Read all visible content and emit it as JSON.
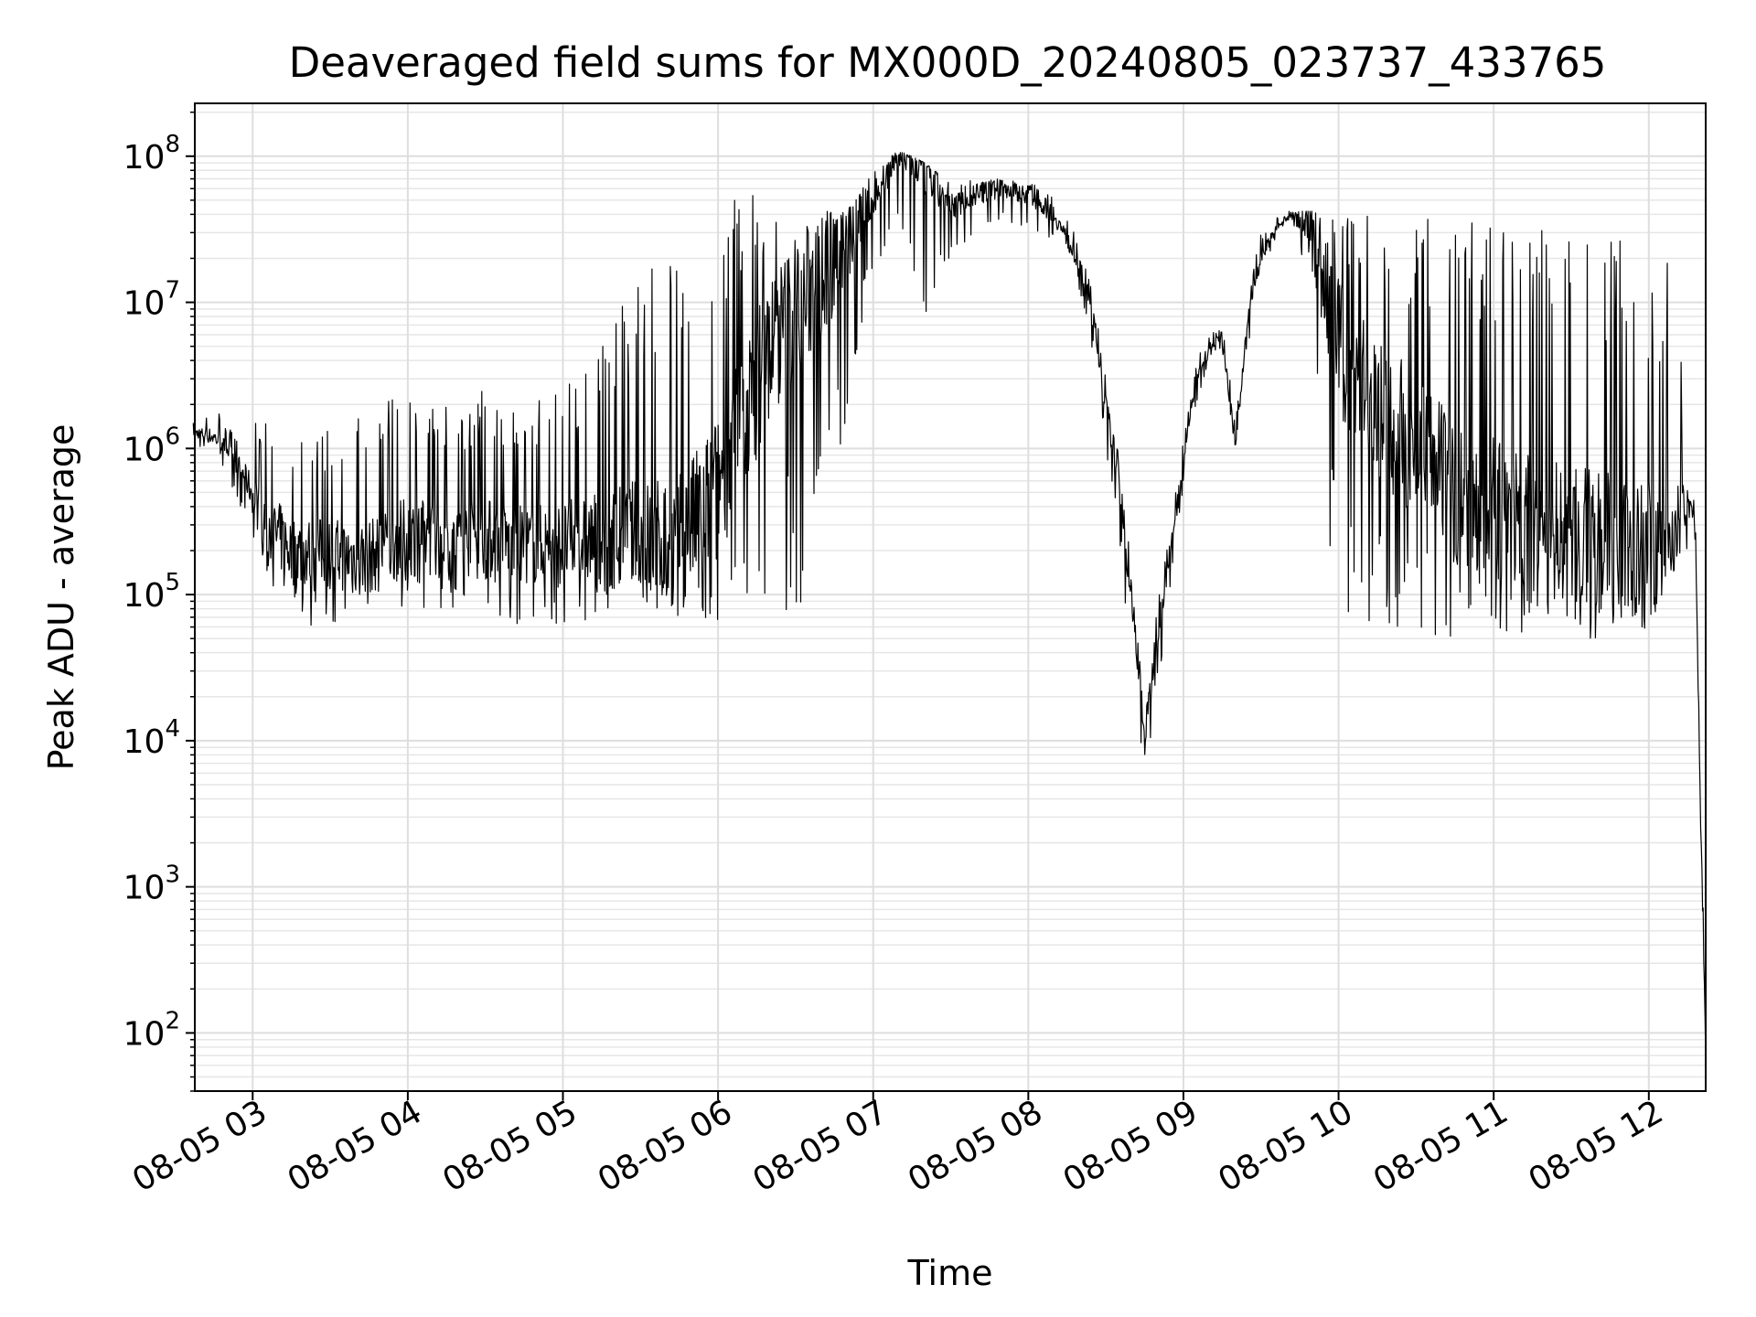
{
  "chart_data": {
    "type": "line",
    "title": "Deaveraged field sums for MX000D_20240805_023737_433765",
    "xlabel": "Time",
    "ylabel": "Peak ADU - average",
    "yscale": "log",
    "ylim": [
      40,
      230000000
    ],
    "xlim": [
      "08-05 02:37:37",
      "08-05 12:22:00"
    ],
    "grid": true,
    "x_ticks": [
      {
        "value": "08-05 03:00",
        "label": "08-05 03"
      },
      {
        "value": "08-05 04:00",
        "label": "08-05 04"
      },
      {
        "value": "08-05 05:00",
        "label": "08-05 05"
      },
      {
        "value": "08-05 06:00",
        "label": "08-05 06"
      },
      {
        "value": "08-05 07:00",
        "label": "08-05 07"
      },
      {
        "value": "08-05 08:00",
        "label": "08-05 08"
      },
      {
        "value": "08-05 09:00",
        "label": "08-05 09"
      },
      {
        "value": "08-05 10:00",
        "label": "08-05 10"
      },
      {
        "value": "08-05 11:00",
        "label": "08-05 11"
      },
      {
        "value": "08-05 12:00",
        "label": "08-05 12"
      }
    ],
    "y_ticks": [
      {
        "value": 100,
        "base": "10",
        "exp": "2"
      },
      {
        "value": 1000,
        "base": "10",
        "exp": "3"
      },
      {
        "value": 10000,
        "base": "10",
        "exp": "4"
      },
      {
        "value": 100000,
        "base": "10",
        "exp": "5"
      },
      {
        "value": 1000000,
        "base": "10",
        "exp": "6"
      },
      {
        "value": 10000000,
        "base": "10",
        "exp": "7"
      },
      {
        "value": 100000000,
        "base": "10",
        "exp": "8"
      }
    ],
    "series": [
      {
        "line_color": "#000000",
        "x": [
          "08-05 02:37",
          "08-05 02:45",
          "08-05 02:50",
          "08-05 02:57",
          "08-05 03:05",
          "08-05 03:10",
          "08-05 03:15",
          "08-05 03:30",
          "08-05 03:45",
          "08-05 04:00",
          "08-05 04:15",
          "08-05 04:30",
          "08-05 04:45",
          "08-05 05:00",
          "08-05 05:15",
          "08-05 05:30",
          "08-05 05:45",
          "08-05 05:55",
          "08-05 06:05",
          "08-05 06:12",
          "08-05 06:20",
          "08-05 06:30",
          "08-05 06:40",
          "08-05 06:50",
          "08-05 07:00",
          "08-05 07:10",
          "08-05 07:20",
          "08-05 07:30",
          "08-05 07:40",
          "08-05 07:50",
          "08-05 08:00",
          "08-05 08:10",
          "08-05 08:20",
          "08-05 08:25",
          "08-05 08:30",
          "08-05 08:35",
          "08-05 08:40",
          "08-05 08:43",
          "08-05 08:45",
          "08-05 08:50",
          "08-05 08:55",
          "08-05 09:00",
          "08-05 09:05",
          "08-05 09:10",
          "08-05 09:15",
          "08-05 09:18",
          "08-05 09:20",
          "08-05 09:25",
          "08-05 09:30",
          "08-05 09:35",
          "08-05 09:40",
          "08-05 09:45",
          "08-05 09:50",
          "08-05 10:00",
          "08-05 10:15",
          "08-05 10:30",
          "08-05 10:45",
          "08-05 11:00",
          "08-05 11:15",
          "08-05 11:30",
          "08-05 11:45",
          "08-05 12:00",
          "08-05 12:05",
          "08-05 12:10",
          "08-05 12:15",
          "08-05 12:18",
          "08-05 12:20",
          "08-05 12:22"
        ],
        "y_center": [
          1300000,
          1200000,
          1000000,
          650000,
          300000,
          250000,
          200000,
          190000,
          180000,
          250000,
          240000,
          240000,
          220000,
          220000,
          250000,
          240000,
          230000,
          400000,
          900000,
          2000000,
          5000000,
          9000000,
          15000000,
          25000000,
          50000000,
          100000000,
          80000000,
          45000000,
          55000000,
          60000000,
          55000000,
          40000000,
          18000000,
          8000000,
          2000000,
          600000,
          90000,
          30000,
          10000,
          60000,
          200000,
          800000,
          3000000,
          5000000,
          6000000,
          2000000,
          1000000,
          8000000,
          20000000,
          30000000,
          38000000,
          40000000,
          30000000,
          5000000,
          2000000,
          1000000,
          500000,
          400000,
          300000,
          250000,
          220000,
          200000,
          220000,
          250000,
          450000,
          300000,
          3000,
          100
        ],
        "y_upper": [
          1500000,
          2000000,
          1500000,
          900000,
          3000000,
          2000000,
          1500000,
          1500000,
          2000000,
          3000000,
          2000000,
          3000000,
          2000000,
          3000000,
          5000000,
          20000000,
          30000000,
          35000000,
          60000000,
          60000000,
          50000000,
          45000000,
          45000000,
          50000000,
          80000000,
          110000000,
          90000000,
          65000000,
          70000000,
          70000000,
          70000000,
          60000000,
          25000000,
          12000000,
          3000000,
          900000,
          150000,
          60000,
          20000,
          100000,
          350000,
          1200000,
          4000000,
          6000000,
          7000000,
          3000000,
          1500000,
          12000000,
          30000000,
          38000000,
          42000000,
          42000000,
          42000000,
          42000000,
          40000000,
          38000000,
          35000000,
          35000000,
          32000000,
          30000000,
          30000000,
          30000000,
          25000000,
          20000000,
          800000,
          400000,
          4000,
          200
        ],
        "y_lower": [
          1000000,
          900000,
          700000,
          300000,
          150000,
          90000,
          60000,
          60000,
          70000,
          80000,
          80000,
          70000,
          60000,
          60000,
          70000,
          80000,
          70000,
          60000,
          70000,
          65000,
          60000,
          65000,
          80000,
          1500000,
          15000000,
          35000000,
          8000000,
          20000000,
          25000000,
          30000000,
          30000000,
          25000000,
          12000000,
          4000000,
          1000000,
          200000,
          30000,
          10000,
          4000,
          20000,
          120000,
          500000,
          2000000,
          4000000,
          5000000,
          1000000,
          900000,
          5000000,
          15000000,
          25000000,
          32000000,
          32000000,
          1000000,
          70000,
          60000,
          55000,
          50000,
          55000,
          50000,
          50000,
          50000,
          50000,
          100000,
          150000,
          200000,
          200000,
          2000,
          50
        ]
      }
    ]
  }
}
